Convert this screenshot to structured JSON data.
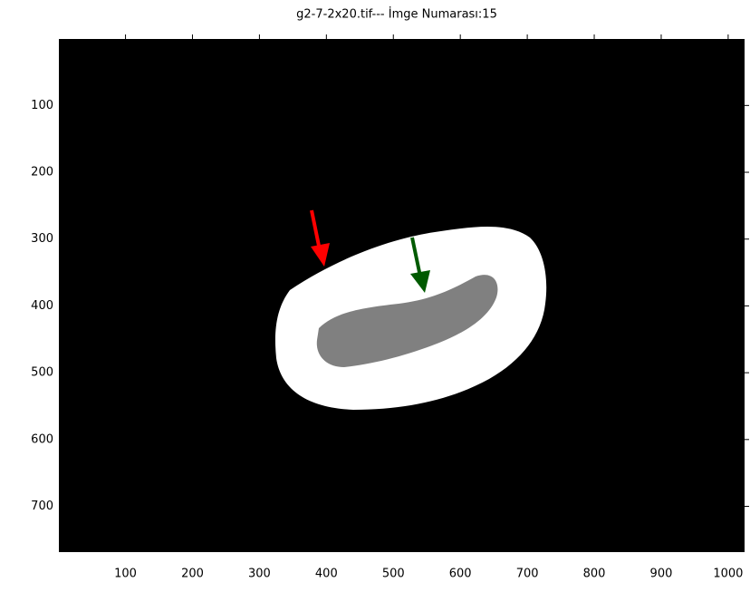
{
  "chart_data": {
    "type": "image",
    "title": "g2-7-2x20.tif--- İmge Numarası:15",
    "xlim": [
      0.5,
      1024.5
    ],
    "ylim": [
      0.5,
      768.5
    ],
    "y_direction": "reverse",
    "xticks": [
      100,
      200,
      300,
      400,
      500,
      600,
      700,
      800,
      900,
      1000
    ],
    "yticks": [
      100,
      200,
      300,
      400,
      500,
      600,
      700
    ],
    "background": "#000000"
  }
}
